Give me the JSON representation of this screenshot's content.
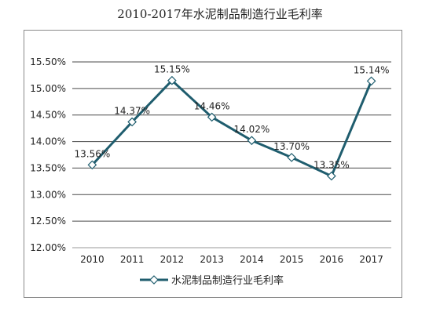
{
  "title": "2010-2017年水泥制品制造行业毛利率",
  "chart_data": {
    "type": "line",
    "title": "2010-2017年水泥制品制造行业毛利率",
    "categories": [
      "2010",
      "2011",
      "2012",
      "2013",
      "2014",
      "2015",
      "2016",
      "2017"
    ],
    "series": [
      {
        "name": "水泥制品制造行业毛利率",
        "values": [
          13.56,
          14.37,
          15.15,
          14.46,
          14.02,
          13.7,
          13.35,
          15.14
        ],
        "labels": [
          "13.56%",
          "14.37%",
          "15.15%",
          "14.46%",
          "14.02%",
          "13.70%",
          "13.35%",
          "15.14%"
        ],
        "color": "#1f5d6e",
        "marker": "diamond"
      }
    ],
    "ylim": [
      12.0,
      15.5
    ],
    "yticks": [
      12.0,
      12.5,
      13.0,
      13.5,
      14.0,
      14.5,
      15.0,
      15.5
    ],
    "ytick_labels": [
      "12.00%",
      "12.50%",
      "13.00%",
      "13.50%",
      "14.00%",
      "14.50%",
      "15.00%",
      "15.50%"
    ],
    "grid": true,
    "legend": "bottom"
  }
}
